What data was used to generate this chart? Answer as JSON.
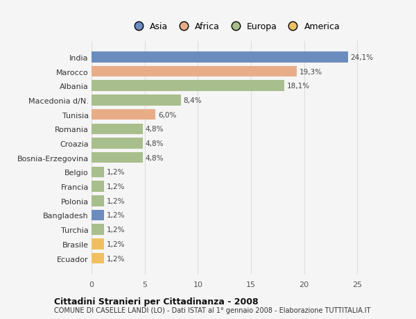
{
  "countries": [
    "India",
    "Marocco",
    "Albania",
    "Macedonia d/N.",
    "Tunisia",
    "Romania",
    "Croazia",
    "Bosnia-Erzegovina",
    "Belgio",
    "Francia",
    "Polonia",
    "Bangladesh",
    "Turchia",
    "Brasile",
    "Ecuador"
  ],
  "values": [
    24.1,
    19.3,
    18.1,
    8.4,
    6.0,
    4.8,
    4.8,
    4.8,
    1.2,
    1.2,
    1.2,
    1.2,
    1.2,
    1.2,
    1.2
  ],
  "labels": [
    "24,1%",
    "19,3%",
    "18,1%",
    "8,4%",
    "6,0%",
    "4,8%",
    "4,8%",
    "4,8%",
    "1,2%",
    "1,2%",
    "1,2%",
    "1,2%",
    "1,2%",
    "1,2%",
    "1,2%"
  ],
  "continents": [
    "Asia",
    "Africa",
    "Europa",
    "Europa",
    "Africa",
    "Europa",
    "Europa",
    "Europa",
    "Europa",
    "Europa",
    "Europa",
    "Asia",
    "Europa",
    "America",
    "America"
  ],
  "continent_colors": {
    "Asia": "#6b8cbf",
    "Africa": "#e8ad88",
    "Europa": "#a8be8c",
    "America": "#f0c060"
  },
  "legend_order": [
    "Asia",
    "Africa",
    "Europa",
    "America"
  ],
  "title1": "Cittadini Stranieri per Cittadinanza - 2008",
  "title2": "COMUNE DI CASELLE LANDI (LO) - Dati ISTAT al 1° gennaio 2008 - Elaborazione TUTTITALIA.IT",
  "xlim": [
    0,
    27
  ],
  "xticks": [
    0,
    5,
    10,
    15,
    20,
    25
  ],
  "background_color": "#f5f5f5",
  "grid_color": "#dddddd"
}
